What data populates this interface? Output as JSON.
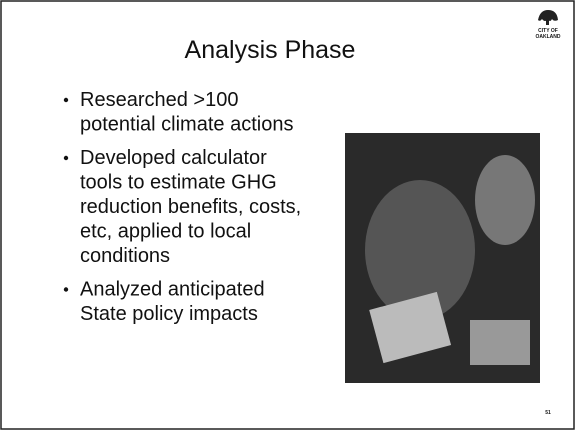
{
  "slide": {
    "title": "Analysis Phase",
    "logo": [
      "CITY OF",
      "OAKLAND"
    ],
    "bullets": [
      [
        "Researched >100",
        "potential climate actions"
      ],
      [
        "Developed calculator",
        "tools to estimate GHG",
        "reduction benefits, costs,",
        "etc, applied to local",
        "conditions"
      ],
      [
        "Analyzed anticipated",
        "State policy impacts"
      ]
    ],
    "page_number": "51"
  }
}
